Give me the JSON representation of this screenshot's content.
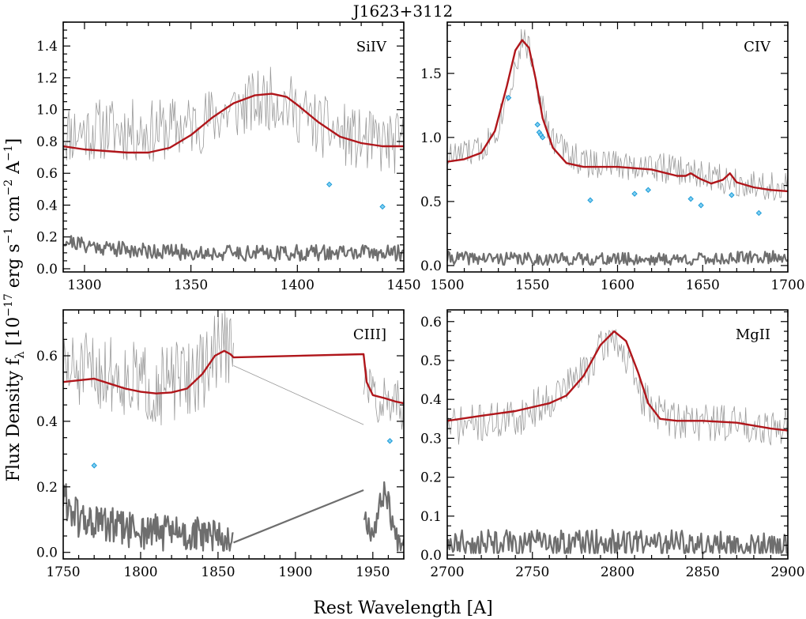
{
  "figure": {
    "title": "J1623+3112",
    "xlabel": "Rest Wavelength [A]",
    "ylabel_main": "Flux Density f",
    "ylabel_sub": "λ",
    "ylabel_units": " [10",
    "ylabel_exp": "−17",
    "ylabel_units2": " erg s",
    "ylabel_exp2": "−1",
    "ylabel_units3": " cm",
    "ylabel_exp3": "−2",
    "ylabel_units4": " A",
    "ylabel_exp4": "−1",
    "ylabel_units5": "]"
  },
  "colors": {
    "model": "#b0161b",
    "data": "#9a9a9a",
    "error": "#6e6e6e",
    "masked": "#1e9bd7"
  },
  "chart_data": [
    {
      "type": "line",
      "label": "SiIV",
      "xlim": [
        1290,
        1450
      ],
      "ylim": [
        -0.02,
        1.55
      ],
      "xticks": [
        1300,
        1350,
        1400,
        1450
      ],
      "yticks": [
        0.0,
        0.2,
        0.4,
        0.6,
        0.8,
        1.0,
        1.2,
        1.4
      ],
      "ytick_labels": [
        "0.0",
        "0.2",
        "0.4",
        "0.6",
        "0.8",
        "1.0",
        "1.2",
        "1.4"
      ],
      "series": [
        {
          "role": "model",
          "x": [
            1290,
            1300,
            1310,
            1320,
            1330,
            1340,
            1350,
            1360,
            1370,
            1380,
            1388,
            1395,
            1400,
            1410,
            1420,
            1430,
            1440,
            1450
          ],
          "y": [
            0.77,
            0.75,
            0.74,
            0.73,
            0.73,
            0.76,
            0.84,
            0.95,
            1.04,
            1.09,
            1.1,
            1.08,
            1.03,
            0.92,
            0.83,
            0.79,
            0.77,
            0.77
          ]
        },
        {
          "role": "data",
          "base_x": [
            1290,
            1310,
            1330,
            1350,
            1370,
            1390,
            1410,
            1430,
            1450
          ],
          "base_y": [
            0.85,
            0.88,
            0.86,
            0.9,
            1.0,
            1.08,
            0.9,
            0.8,
            0.78
          ],
          "noise": 0.2,
          "n": 300,
          "seed": 11
        },
        {
          "role": "error",
          "base_x": [
            1290,
            1300,
            1320,
            1350,
            1400,
            1450
          ],
          "base_y": [
            0.18,
            0.15,
            0.12,
            0.1,
            0.1,
            0.1
          ],
          "noise": 0.05,
          "n": 300,
          "seed": 21
        },
        {
          "role": "masked",
          "x": [
            1415,
            1440
          ],
          "y": [
            0.53,
            0.39
          ]
        }
      ]
    },
    {
      "type": "line",
      "label": "CIV",
      "xlim": [
        1500,
        1700
      ],
      "ylim": [
        -0.05,
        1.9
      ],
      "xticks": [
        1500,
        1550,
        1600,
        1650,
        1700
      ],
      "yticks": [
        0.0,
        0.5,
        1.0,
        1.5
      ],
      "ytick_labels": [
        "0.0",
        "0.5",
        "1.0",
        "1.5"
      ],
      "series": [
        {
          "role": "model",
          "x": [
            1500,
            1510,
            1520,
            1528,
            1535,
            1540,
            1544,
            1548,
            1552,
            1556,
            1562,
            1570,
            1580,
            1600,
            1620,
            1635,
            1640,
            1643,
            1648,
            1655,
            1662,
            1666,
            1670,
            1680,
            1690,
            1700
          ],
          "y": [
            0.81,
            0.83,
            0.88,
            1.05,
            1.4,
            1.68,
            1.76,
            1.7,
            1.45,
            1.15,
            0.92,
            0.8,
            0.77,
            0.77,
            0.75,
            0.7,
            0.7,
            0.72,
            0.68,
            0.64,
            0.67,
            0.72,
            0.65,
            0.61,
            0.59,
            0.58
          ]
        },
        {
          "role": "data",
          "base_x": [
            1500,
            1520,
            1530,
            1540,
            1545,
            1550,
            1560,
            1580,
            1620,
            1660,
            1700
          ],
          "base_y": [
            0.85,
            0.9,
            1.1,
            1.55,
            1.8,
            1.6,
            1.0,
            0.8,
            0.78,
            0.68,
            0.6
          ],
          "noise": 0.12,
          "n": 300,
          "seed": 33
        },
        {
          "role": "error",
          "base_x": [
            1500,
            1550,
            1600,
            1650,
            1700
          ],
          "base_y": [
            0.06,
            0.05,
            0.05,
            0.05,
            0.07
          ],
          "noise": 0.05,
          "n": 300,
          "seed": 41
        },
        {
          "role": "masked",
          "x": [
            1536,
            1553,
            1554,
            1555,
            1556,
            1584,
            1610,
            1618,
            1643,
            1649,
            1667,
            1683
          ],
          "y": [
            1.31,
            1.1,
            1.04,
            1.02,
            1.0,
            0.51,
            0.56,
            0.59,
            0.52,
            0.47,
            0.55,
            0.41
          ]
        }
      ]
    },
    {
      "type": "line",
      "label": "CIII]",
      "xlim": [
        1750,
        1970
      ],
      "ylim": [
        -0.02,
        0.74
      ],
      "xticks": [
        1750,
        1800,
        1850,
        1900,
        1950
      ],
      "yticks": [
        0.0,
        0.2,
        0.4,
        0.6
      ],
      "ytick_labels": [
        "0.0",
        "0.2",
        "0.4",
        "0.6"
      ],
      "series": [
        {
          "role": "model",
          "x": [
            1750,
            1760,
            1770,
            1780,
            1790,
            1800,
            1810,
            1820,
            1830,
            1840,
            1848,
            1854,
            1858,
            1860,
            1944,
            1946,
            1950,
            1958,
            1965,
            1970
          ],
          "y": [
            0.52,
            0.525,
            0.53,
            0.515,
            0.5,
            0.49,
            0.485,
            0.488,
            0.5,
            0.545,
            0.6,
            0.615,
            0.605,
            0.595,
            0.605,
            0.52,
            0.48,
            0.47,
            0.46,
            0.455
          ]
        },
        {
          "role": "data",
          "base_x": [
            1750,
            1780,
            1810,
            1840,
            1850,
            1857,
            1860
          ],
          "base_y": [
            0.55,
            0.55,
            0.5,
            0.55,
            0.63,
            0.63,
            0.58
          ],
          "noise": 0.12,
          "n": 180,
          "seed": 51
        },
        {
          "role": "gap_data",
          "x": [
            1860,
            1944
          ],
          "y": [
            0.57,
            0.39
          ]
        },
        {
          "role": "data2",
          "base_x": [
            1944,
            1950,
            1960,
            1970
          ],
          "base_y": [
            0.52,
            0.48,
            0.46,
            0.45
          ],
          "noise": 0.08,
          "n": 40,
          "seed": 57
        },
        {
          "role": "error",
          "base_x": [
            1750,
            1760,
            1790,
            1820,
            1850,
            1860
          ],
          "base_y": [
            0.17,
            0.1,
            0.07,
            0.06,
            0.04,
            0.03
          ],
          "noise": 0.06,
          "n": 180,
          "seed": 61
        },
        {
          "role": "gap_error",
          "x": [
            1860,
            1944
          ],
          "y": [
            0.03,
            0.19
          ]
        },
        {
          "role": "error2",
          "base_x": [
            1944,
            1950,
            1958,
            1965,
            1970
          ],
          "base_y": [
            0.12,
            0.06,
            0.2,
            0.04,
            0.05
          ],
          "noise": 0.04,
          "n": 40,
          "seed": 67
        },
        {
          "role": "masked",
          "x": [
            1770,
            1961
          ],
          "y": [
            0.265,
            0.34
          ]
        }
      ]
    },
    {
      "type": "line",
      "label": "MgII",
      "xlim": [
        2700,
        2900
      ],
      "ylim": [
        -0.01,
        0.63
      ],
      "xticks": [
        2700,
        2750,
        2800,
        2850,
        2900
      ],
      "yticks": [
        0.0,
        0.1,
        0.2,
        0.3,
        0.4,
        0.5,
        0.6
      ],
      "ytick_labels": [
        "0.0",
        "0.1",
        "0.2",
        "0.3",
        "0.4",
        "0.5",
        "0.6"
      ],
      "series": [
        {
          "role": "model",
          "x": [
            2700,
            2720,
            2740,
            2760,
            2770,
            2780,
            2790,
            2798,
            2805,
            2812,
            2818,
            2825,
            2835,
            2850,
            2870,
            2890,
            2900
          ],
          "y": [
            0.345,
            0.358,
            0.37,
            0.39,
            0.41,
            0.46,
            0.54,
            0.575,
            0.55,
            0.47,
            0.39,
            0.35,
            0.345,
            0.345,
            0.34,
            0.325,
            0.32
          ]
        },
        {
          "role": "data",
          "base_x": [
            2700,
            2740,
            2760,
            2780,
            2798,
            2815,
            2830,
            2860,
            2900
          ],
          "base_y": [
            0.33,
            0.35,
            0.4,
            0.47,
            0.57,
            0.4,
            0.35,
            0.34,
            0.33
          ],
          "noise": 0.05,
          "n": 300,
          "seed": 71
        },
        {
          "role": "error",
          "base_x": [
            2700,
            2750,
            2800,
            2850,
            2900
          ],
          "base_y": [
            0.03,
            0.03,
            0.03,
            0.03,
            0.02
          ],
          "noise": 0.035,
          "n": 300,
          "seed": 81
        },
        {
          "role": "masked",
          "x": [],
          "y": []
        }
      ]
    }
  ]
}
